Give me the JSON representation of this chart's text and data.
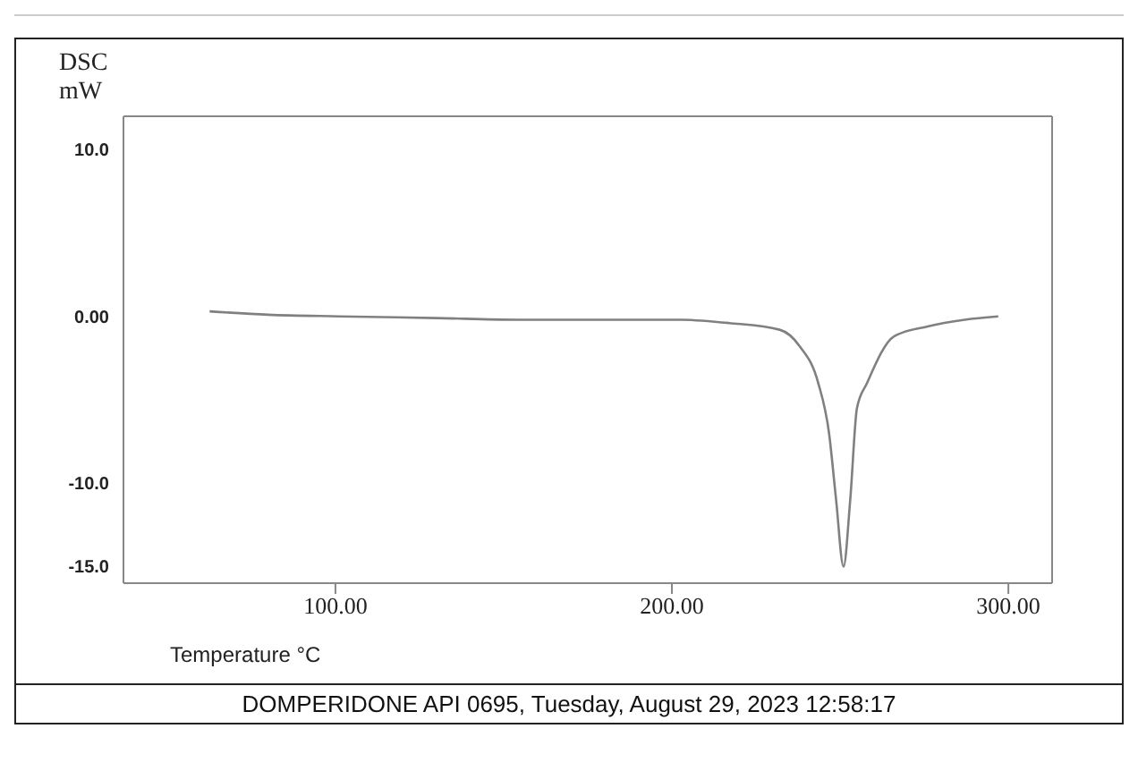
{
  "chart_data": {
    "type": "line",
    "xlabel": "Temperature °C",
    "ylabel": "DSC mW",
    "annotations": [
      "DOMPERIDONE API 0695, Tuesday, August 29, 2023 12:58:17"
    ],
    "x": [
      62.6,
      80,
      101,
      130,
      154,
      180,
      202,
      217,
      232,
      238,
      243.5,
      246.7,
      248.8,
      251,
      253,
      255,
      258,
      266,
      276,
      287,
      297
    ],
    "series": [
      {
        "color": "#808080",
        "values": [
          0.3,
          0.1,
          0.0,
          -0.1,
          -0.2,
          -0.2,
          -0.2,
          -0.4,
          -0.8,
          -1.8,
          -4.0,
          -7,
          -11,
          -15,
          -11,
          -5.5,
          -4,
          -1.2,
          -0.6,
          -0.2,
          0.0
        ]
      }
    ],
    "xlim": [
      37,
      313
    ],
    "xticks": [
      {
        "value": 100,
        "label": "100.00"
      },
      {
        "value": 200,
        "label": "200.00"
      },
      {
        "value": 300,
        "label": "300.00"
      }
    ],
    "ylim": [
      -16,
      12
    ],
    "yticks": [
      {
        "value": 10,
        "label": "10.0"
      },
      {
        "value": 0,
        "label": "0.00"
      },
      {
        "value": -10,
        "label": "-10.0"
      },
      {
        "value": -15,
        "label": "-15.0"
      }
    ],
    "grid": false,
    "legend": false,
    "marker": "none",
    "line_style": "solid"
  }
}
